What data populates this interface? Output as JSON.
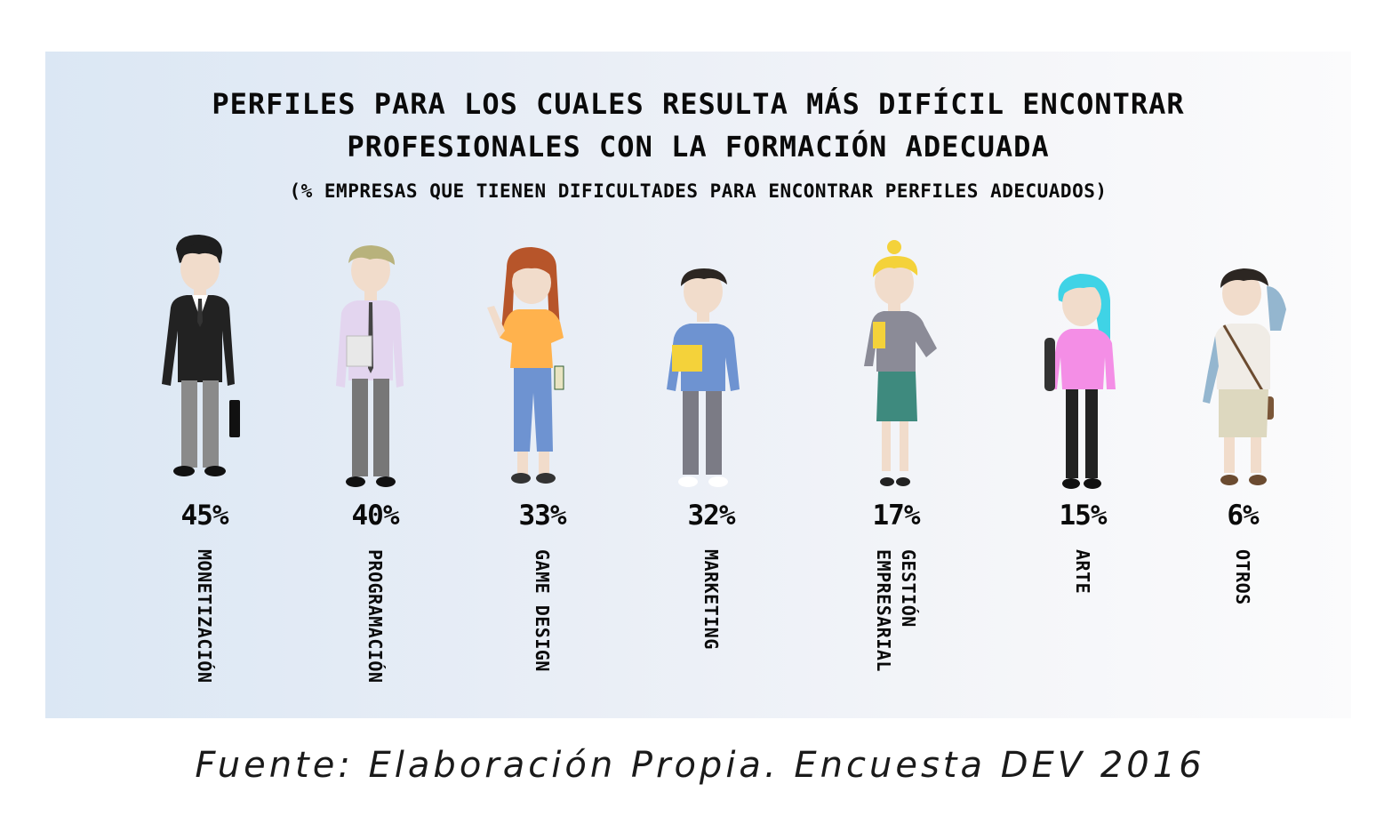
{
  "title_line1": "PERFILES PARA LOS CUALES RESULTA MÁS DIFÍCIL ENCONTRAR",
  "title_line2": "PROFESIONALES CON LA FORMACIÓN ADECUADA",
  "subtitle": "(% EMPRESAS QUE TIENEN DIFICULTADES PARA ENCONTRAR PERFILES ADECUADOS)",
  "source": "Fuente: Elaboración Propia. Encuesta DEV 2016",
  "chart_data": {
    "type": "table",
    "title": "PERFILES PARA LOS CUALES RESULTA MÁS DIFÍCIL ENCONTRAR PROFESIONALES CON LA FORMACIÓN ADECUADA",
    "subtitle": "(% EMPRESAS QUE TIENEN DIFICULTADES PARA ENCONTRAR PERFILES ADECUADOS)",
    "categories": [
      "MONETIZACIÓN",
      "PROGRAMACIÓN",
      "GAME DESIGN",
      "MARKETING",
      "GESTIÓN EMPRESARIAL",
      "ARTE",
      "OTROS"
    ],
    "values": [
      45,
      40,
      33,
      32,
      17,
      15,
      6
    ],
    "labels": [
      "45%",
      "40%",
      "33%",
      "32%",
      "17%",
      "15%",
      "6%"
    ],
    "figure_colors": {
      "monetizacion": "#222222",
      "programacion": "#e3d5ef",
      "game_design": "#ffb24d",
      "marketing": "#6e93d1",
      "gestion_empresarial": "#3e8a7e",
      "arte": "#f48ee6",
      "otros": "#f0ece6"
    }
  }
}
